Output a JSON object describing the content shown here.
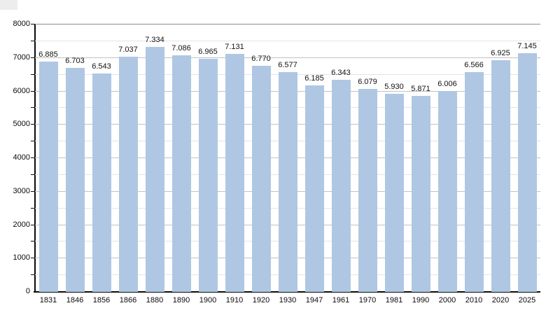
{
  "chart_data": {
    "type": "bar",
    "title": "",
    "xlabel": "",
    "ylabel": "",
    "categories": [
      "1831",
      "1846",
      "1856",
      "1866",
      "1880",
      "1890",
      "1900",
      "1910",
      "1920",
      "1930",
      "1947",
      "1961",
      "1970",
      "1981",
      "1990",
      "2000",
      "2010",
      "2020",
      "2025"
    ],
    "values": [
      6885,
      6703,
      6543,
      7037,
      7334,
      7086,
      6965,
      7131,
      6770,
      6577,
      6185,
      6343,
      6079,
      5930,
      5871,
      6006,
      6566,
      6925,
      7145
    ],
    "value_labels": [
      "6.885",
      "6.703",
      "6.543",
      "7.037",
      "7.334",
      "7.086",
      "6.965",
      "7.131",
      "6.770",
      "6.577",
      "6.185",
      "6.343",
      "6.079",
      "5.930",
      "5.871",
      "6.006",
      "6.566",
      "6.925",
      "7.145"
    ],
    "y_tick_labels": [
      "0",
      "1000",
      "2000",
      "3000",
      "4000",
      "5000",
      "6000",
      "7000",
      "8000"
    ],
    "ylim": [
      0,
      8000
    ],
    "ytick_major": 1000,
    "ytick_minor": 500,
    "grid": true,
    "legend": "none",
    "colors": {
      "bar_fill": "#afc7e3",
      "grid_major": "#c2c2c2",
      "grid_minor": "#e4e4e4",
      "grid_top": "#8f8f8f",
      "axis": "#0a0a0a",
      "text": "#111111",
      "background": "#ffffff",
      "corner_artifact": "#ededed"
    }
  }
}
